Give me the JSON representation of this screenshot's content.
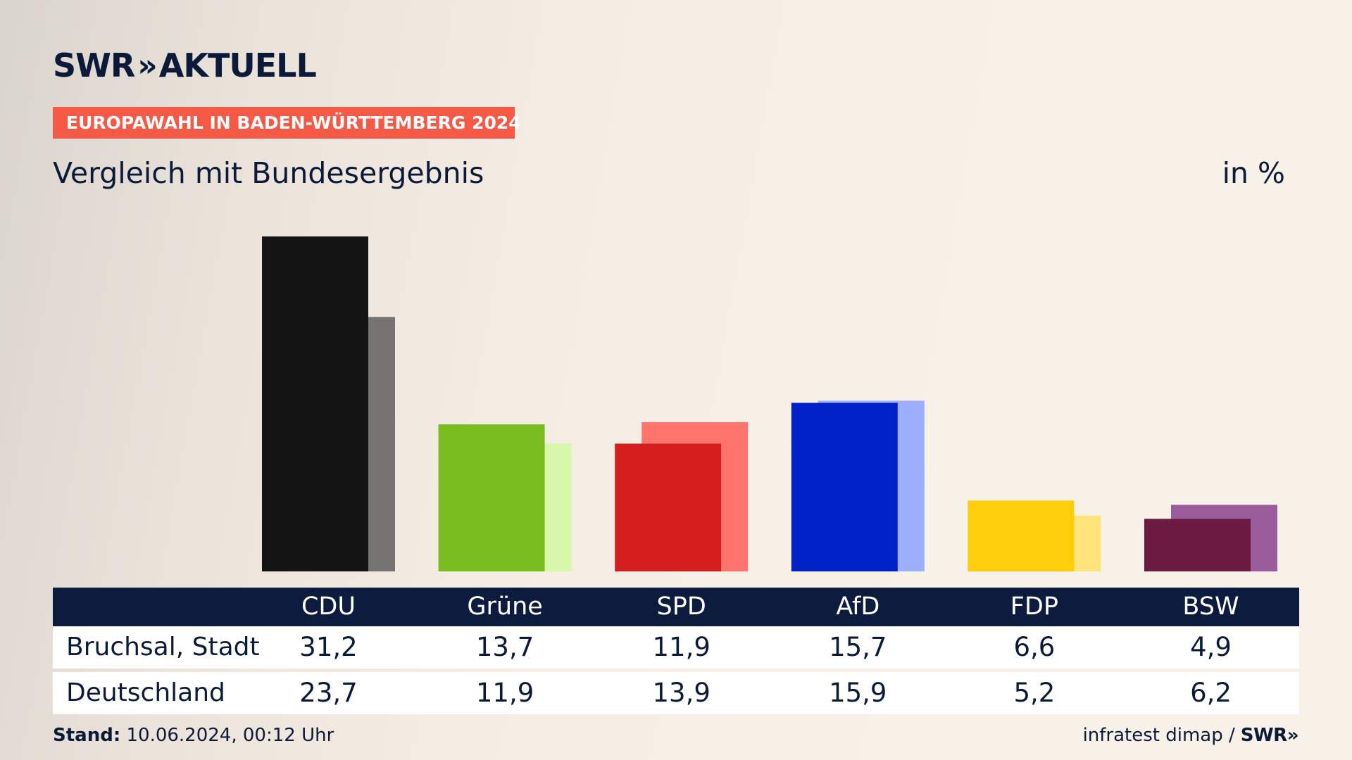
{
  "brand": {
    "logo_text": "SWR",
    "logo_chevrons": "»",
    "logo_product": "AKTUELL"
  },
  "tag": "EUROPAWAHL IN BADEN-WÜRTTEMBERG 2024",
  "subtitle": "Vergleich mit Bundesergebnis",
  "unit": "in %",
  "table": {
    "rows": [
      {
        "label": "Bruchsal, Stadt"
      },
      {
        "label": "Deutschland"
      }
    ]
  },
  "footer": {
    "stand_label": "Stand:",
    "stand_value": "10.06.2024, 00:12 Uhr",
    "source": "infratest dimap /",
    "source_brand": "SWR»"
  },
  "chart_data": {
    "type": "bar",
    "categories": [
      "CDU",
      "Grüne",
      "SPD",
      "AfD",
      "FDP",
      "BSW"
    ],
    "series": [
      {
        "name": "Bruchsal, Stadt",
        "values": [
          31.2,
          13.7,
          11.9,
          15.7,
          6.6,
          4.9
        ],
        "display": [
          "31,2",
          "13,7",
          "11,9",
          "15,7",
          "6,6",
          "4,9"
        ]
      },
      {
        "name": "Deutschland",
        "values": [
          23.7,
          11.9,
          13.9,
          15.9,
          5.2,
          6.2
        ],
        "display": [
          "23,7",
          "11,9",
          "13,9",
          "15,9",
          "5,2",
          "6,2"
        ]
      }
    ],
    "colors": {
      "primary": [
        "#141414",
        "#79be1e",
        "#d41e1e",
        "#0021c8",
        "#ffcd0b",
        "#6b1a41"
      ],
      "secondary": [
        "#757472",
        "#d8f7ab",
        "#ff756d",
        "#9daeff",
        "#ffe37b",
        "#9a5c9a"
      ]
    },
    "ylim": [
      0,
      31.2
    ],
    "grid": false
  }
}
